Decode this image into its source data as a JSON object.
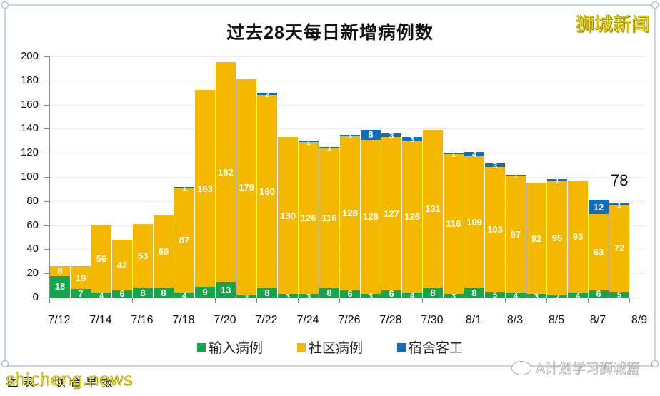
{
  "header": {
    "title": "过去28天每日新增病例数",
    "brand_watermark": "狮城新闻"
  },
  "legend": [
    {
      "label": "输入病例",
      "color": "#16a54b"
    },
    {
      "label": "社区病例",
      "color": "#f5b800"
    },
    {
      "label": "宿舍客工",
      "color": "#0d6ebd"
    }
  ],
  "annotation": {
    "label": "78"
  },
  "footer": {
    "source_text": "图表：联合早报",
    "site_watermark": "shicheng.news",
    "wechat_watermark": "A计划学习狮城篇"
  },
  "chart_data": {
    "type": "bar",
    "stacked": true,
    "title": "过去28天每日新增病例数",
    "xlabel": "",
    "ylabel": "",
    "ylim": [
      0,
      200
    ],
    "yticks": [
      0,
      20,
      40,
      60,
      80,
      100,
      120,
      140,
      160,
      180,
      200
    ],
    "xtick_labels": [
      "7/12",
      "7/14",
      "7/16",
      "7/18",
      "7/20",
      "7/22",
      "7/24",
      "7/26",
      "7/28",
      "7/30",
      "8/1",
      "8/3",
      "8/5",
      "8/7",
      "8/9"
    ],
    "grid": "horizontal",
    "legend_position": "bottom",
    "categories": [
      "7/12",
      "7/13",
      "7/14",
      "7/15",
      "7/16",
      "7/17",
      "7/18",
      "7/19",
      "7/20",
      "7/21",
      "7/22",
      "7/23",
      "7/24",
      "7/25",
      "7/26",
      "7/27",
      "7/28",
      "7/29",
      "7/30",
      "7/31",
      "8/1",
      "8/2",
      "8/3",
      "8/4",
      "8/5",
      "8/6",
      "8/7",
      "8/8"
    ],
    "series": [
      {
        "name": "输入病例",
        "color": "#16a54b",
        "values": [
          18,
          7,
          4,
          6,
          8,
          8,
          4,
          9,
          13,
          2,
          8,
          3,
          3,
          8,
          6,
          3,
          6,
          4,
          8,
          3,
          8,
          5,
          4,
          3,
          2,
          4,
          6,
          5
        ]
      },
      {
        "name": "社区病例",
        "color": "#f5b800",
        "values": [
          8,
          19,
          56,
          42,
          53,
          60,
          87,
          163,
          182,
          179,
          160,
          130,
          126,
          116,
          128,
          128,
          127,
          126,
          131,
          116,
          109,
          103,
          97,
          92,
          95,
          93,
          63,
          72
        ]
      },
      {
        "name": "宿舍客工",
        "color": "#0d6ebd",
        "values": [
          0,
          0,
          0,
          0,
          0,
          0,
          1,
          0,
          0,
          0,
          2,
          0,
          1,
          1,
          1,
          8,
          3,
          3,
          0,
          1,
          4,
          3,
          1,
          0,
          1,
          0,
          12,
          1
        ]
      }
    ],
    "annotations": [
      {
        "x": "8/8",
        "text": "78"
      }
    ]
  }
}
